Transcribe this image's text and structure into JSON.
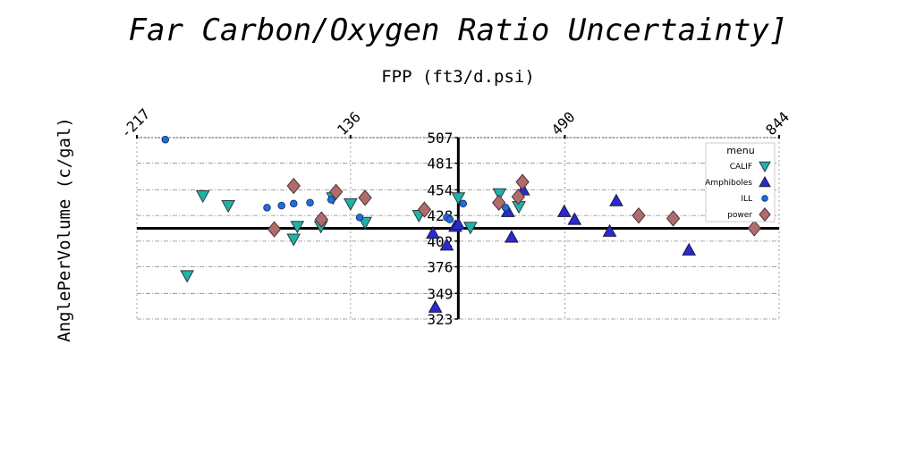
{
  "chart_data": {
    "type": "scatter",
    "title": "Far Carbon/Oxygen Ratio Uncertainty]",
    "xlabel": "FPP (ft3/d.psi)",
    "ylabel": "AnglePerVolume (c/gal)",
    "xlim": [
      -217,
      844
    ],
    "ylim": [
      323,
      507
    ],
    "x_ticks": [
      "-217",
      "136",
      "490",
      "844"
    ],
    "y_ticks": [
      "507",
      "481",
      "454",
      "428",
      "402",
      "376",
      "349",
      "323"
    ],
    "grid": true,
    "legend_title": "menu",
    "legend_position": "top-right",
    "crosshair": {
      "x": 314,
      "y": 415
    },
    "series": [
      {
        "name": "CALIF",
        "marker": "triangle-down",
        "color": "#20b2aa",
        "points": [
          [
            -108,
            448
          ],
          [
            -66,
            438
          ],
          [
            -134,
            367
          ],
          [
            48,
            417
          ],
          [
            42,
            404
          ],
          [
            87,
            417
          ],
          [
            107,
            446
          ],
          [
            136,
            440
          ],
          [
            160,
            421
          ],
          [
            249,
            428
          ],
          [
            314,
            446
          ],
          [
            334,
            416
          ],
          [
            382,
            450
          ],
          [
            414,
            437
          ]
        ]
      },
      {
        "name": "Amphiboles",
        "marker": "triangle-up",
        "color": "#2a2ad0",
        "points": [
          [
            276,
            335
          ],
          [
            272,
            410
          ],
          [
            295,
            398
          ],
          [
            309,
            417
          ],
          [
            314,
            419
          ],
          [
            396,
            432
          ],
          [
            402,
            406
          ],
          [
            421,
            454
          ],
          [
            489,
            432
          ],
          [
            506,
            424
          ],
          [
            564,
            412
          ],
          [
            575,
            443
          ],
          [
            695,
            393
          ]
        ]
      },
      {
        "name": "ILL",
        "marker": "circle",
        "color": "#1e6fd9",
        "points": [
          [
            -170,
            505
          ],
          [
            -2,
            436
          ],
          [
            22,
            438
          ],
          [
            42,
            440
          ],
          [
            69,
            441
          ],
          [
            104,
            444
          ],
          [
            151,
            426
          ],
          [
            295,
            426
          ],
          [
            300,
            424
          ],
          [
            322,
            440
          ],
          [
            392,
            436
          ]
        ]
      },
      {
        "name": "power",
        "marker": "diamond",
        "color": "#b06c6c",
        "points": [
          [
            10,
            414
          ],
          [
            42,
            458
          ],
          [
            88,
            424
          ],
          [
            112,
            452
          ],
          [
            160,
            446
          ],
          [
            258,
            434
          ],
          [
            381,
            441
          ],
          [
            413,
            447
          ],
          [
            420,
            462
          ],
          [
            612,
            428
          ],
          [
            669,
            425
          ],
          [
            803,
            415
          ]
        ]
      }
    ]
  }
}
